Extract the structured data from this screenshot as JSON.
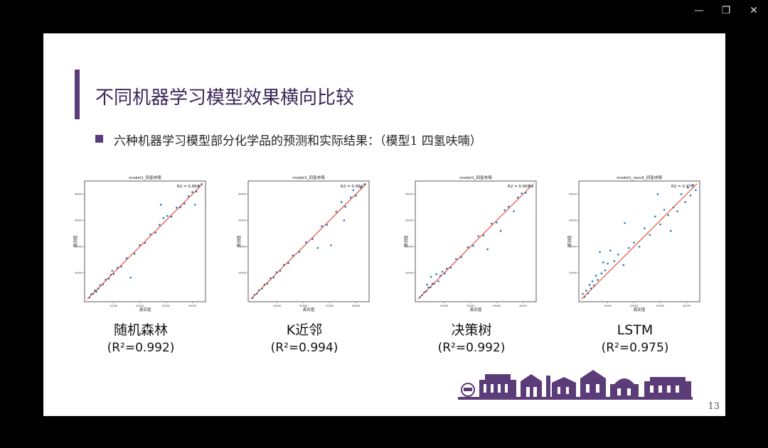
{
  "window": {
    "minimize_glyph": "—",
    "maximize_glyph": "❐",
    "close_glyph": "✕"
  },
  "slide": {
    "title": "不同机器学习模型效果横向比较",
    "subtitle": "六种机器学习模型部分化学品的预测和实际结果：（模型1 四氢呋喃）",
    "page_number": "13",
    "accent_color": "#5b3b78"
  },
  "chart_data": [
    {
      "type": "scatter",
      "title": "model1_四氢呋喃",
      "xlabel": "真实值",
      "ylabel": "预测值",
      "annotation": "R2 = 0.992",
      "xlim": [
        -1000,
        45000
      ],
      "ylim": [
        -1000,
        45000
      ],
      "xticks": [
        10000,
        20000,
        30000,
        40000
      ],
      "yticks": [
        10000,
        20000,
        30000,
        40000
      ],
      "fit_line": [
        [
          0,
          0
        ],
        [
          44000,
          44000
        ]
      ],
      "points": [
        [
          800,
          600
        ],
        [
          1500,
          1800
        ],
        [
          2200,
          2000
        ],
        [
          3000,
          3300
        ],
        [
          4200,
          3900
        ],
        [
          5000,
          5300
        ],
        [
          6000,
          5600
        ],
        [
          7000,
          7400
        ],
        [
          8200,
          7800
        ],
        [
          9000,
          9300
        ],
        [
          10000,
          9600
        ],
        [
          11500,
          11900
        ],
        [
          13000,
          12400
        ],
        [
          15000,
          15600
        ],
        [
          16500,
          8200
        ],
        [
          18000,
          17300
        ],
        [
          20000,
          20600
        ],
        [
          22000,
          21400
        ],
        [
          24000,
          24700
        ],
        [
          26000,
          25300
        ],
        [
          27500,
          28300
        ],
        [
          29000,
          30900
        ],
        [
          30500,
          31700
        ],
        [
          32000,
          31400
        ],
        [
          34000,
          34900
        ],
        [
          35500,
          35000
        ],
        [
          37000,
          36400
        ],
        [
          38500,
          39200
        ],
        [
          40000,
          40800
        ],
        [
          41500,
          41000
        ],
        [
          42500,
          43200
        ],
        [
          43500,
          43800
        ],
        [
          28000,
          36000
        ],
        [
          41000,
          36000
        ],
        [
          9500,
          10800
        ],
        [
          3500,
          2800
        ]
      ],
      "caption_name": "随机森林",
      "caption_r2": "(R²=0.992)"
    },
    {
      "type": "scatter",
      "title": "model1_四氢呋喃",
      "xlabel": "真实值",
      "ylabel": "预测值",
      "annotation": "R2 = 0.994",
      "xlim": [
        -1000,
        45000
      ],
      "ylim": [
        -1000,
        45000
      ],
      "xticks": [
        10000,
        20000,
        30000,
        40000
      ],
      "yticks": [
        10000,
        20000,
        30000,
        40000
      ],
      "fit_line": [
        [
          0,
          0
        ],
        [
          44000,
          44000
        ]
      ],
      "points": [
        [
          700,
          500
        ],
        [
          1400,
          1600
        ],
        [
          2300,
          2100
        ],
        [
          3100,
          3400
        ],
        [
          4300,
          4000
        ],
        [
          5200,
          5500
        ],
        [
          6300,
          5900
        ],
        [
          7500,
          7900
        ],
        [
          8700,
          8300
        ],
        [
          9800,
          10200
        ],
        [
          11200,
          10800
        ],
        [
          12600,
          13100
        ],
        [
          14300,
          13700
        ],
        [
          16000,
          16600
        ],
        [
          18500,
          18000
        ],
        [
          21000,
          21700
        ],
        [
          23500,
          22900
        ],
        [
          25500,
          19500
        ],
        [
          27000,
          27800
        ],
        [
          29000,
          28300
        ],
        [
          30500,
          20500
        ],
        [
          32500,
          33300
        ],
        [
          34500,
          37000
        ],
        [
          36000,
          35200
        ],
        [
          38000,
          38800
        ],
        [
          40000,
          39400
        ],
        [
          41800,
          42500
        ],
        [
          43200,
          43800
        ],
        [
          35500,
          30000
        ],
        [
          39000,
          41500
        ]
      ],
      "caption_name": "K近邻",
      "caption_r2": "(R²=0.994)"
    },
    {
      "type": "scatter",
      "title": "model1_四氢呋喃",
      "xlabel": "真实值",
      "ylabel": "预测值",
      "annotation": "R2 = 0.992",
      "xlim": [
        -1000,
        45000
      ],
      "ylim": [
        -1000,
        45000
      ],
      "xticks": [
        10000,
        20000,
        30000,
        40000
      ],
      "yticks": [
        10000,
        20000,
        30000,
        40000
      ],
      "fit_line": [
        [
          0,
          0
        ],
        [
          44000,
          44000
        ]
      ],
      "points": [
        [
          800,
          700
        ],
        [
          1600,
          1500
        ],
        [
          2400,
          2600
        ],
        [
          3200,
          3000
        ],
        [
          4000,
          4400
        ],
        [
          4800,
          4500
        ],
        [
          5500,
          5900
        ],
        [
          6200,
          5800
        ],
        [
          7000,
          9500
        ],
        [
          7800,
          6800
        ],
        [
          8500,
          8900
        ],
        [
          9300,
          10500
        ],
        [
          10200,
          9800
        ],
        [
          11000,
          11600
        ],
        [
          12500,
          12000
        ],
        [
          14500,
          15300
        ],
        [
          16500,
          16000
        ],
        [
          19000,
          19800
        ],
        [
          21000,
          20300
        ],
        [
          23000,
          24000
        ],
        [
          25000,
          24300
        ],
        [
          26500,
          19000
        ],
        [
          28000,
          28800
        ],
        [
          30000,
          29200
        ],
        [
          31500,
          26000
        ],
        [
          33000,
          33900
        ],
        [
          34500,
          35200
        ],
        [
          36500,
          33500
        ],
        [
          38000,
          38700
        ],
        [
          39500,
          40300
        ],
        [
          41000,
          40500
        ],
        [
          42500,
          43300
        ],
        [
          43500,
          42900
        ],
        [
          5000,
          8500
        ],
        [
          3500,
          5500
        ]
      ],
      "caption_name": "决策树",
      "caption_r2": "(R²=0.992)"
    },
    {
      "type": "scatter",
      "title": "model1_result_四氢呋喃",
      "xlabel": "真实值",
      "ylabel": "预测值",
      "annotation": "R2 = 0.975",
      "xlim": [
        -1000,
        45000
      ],
      "ylim": [
        -1000,
        45000
      ],
      "xticks": [
        10000,
        20000,
        30000,
        40000
      ],
      "yticks": [
        10000,
        20000,
        30000,
        40000
      ],
      "fit_line": [
        [
          0,
          0
        ],
        [
          44000,
          44000
        ]
      ],
      "points": [
        [
          500,
          2000
        ],
        [
          1200,
          900
        ],
        [
          1800,
          3200
        ],
        [
          2500,
          2200
        ],
        [
          3100,
          5400
        ],
        [
          3600,
          4100
        ],
        [
          4200,
          6800
        ],
        [
          4800,
          5200
        ],
        [
          5500,
          8900
        ],
        [
          6200,
          7300
        ],
        [
          7000,
          18000
        ],
        [
          7600,
          9800
        ],
        [
          8300,
          14000
        ],
        [
          9000,
          11000
        ],
        [
          10000,
          13500
        ],
        [
          11000,
          18500
        ],
        [
          12500,
          14500
        ],
        [
          14000,
          17000
        ],
        [
          16000,
          13000
        ],
        [
          18000,
          19500
        ],
        [
          20000,
          21500
        ],
        [
          22000,
          20000
        ],
        [
          24000,
          27000
        ],
        [
          26000,
          24500
        ],
        [
          28000,
          31500
        ],
        [
          30000,
          28500
        ],
        [
          31500,
          34000
        ],
        [
          33000,
          32000
        ],
        [
          35000,
          35000
        ],
        [
          36500,
          33500
        ],
        [
          38000,
          40000
        ],
        [
          39500,
          37000
        ],
        [
          40500,
          42500
        ],
        [
          41500,
          39500
        ],
        [
          42500,
          43500
        ],
        [
          43500,
          41500
        ],
        [
          29000,
          40000
        ],
        [
          34000,
          26000
        ],
        [
          16500,
          29000
        ]
      ],
      "caption_name": "LSTM",
      "caption_r2": "(R²=0.975)"
    }
  ]
}
